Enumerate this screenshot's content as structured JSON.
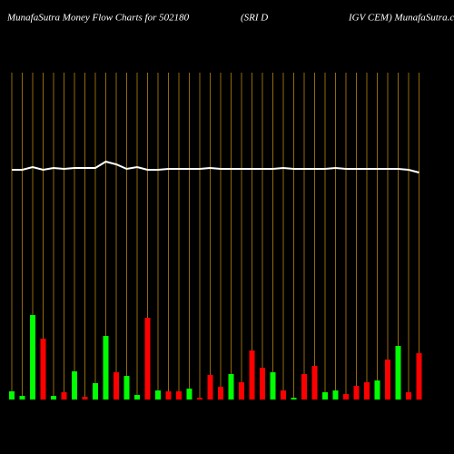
{
  "chart_data": {
    "type": "bar",
    "title": "MunafaSutra  Money Flow  Charts for 502180",
    "title_middle": "(SRI D",
    "title_right": "IGV CEM) MunafaSutra.com",
    "categories": [
      null,
      null,
      null,
      null,
      null,
      null,
      null,
      null,
      null,
      null,
      null,
      null,
      null,
      null,
      null,
      null,
      null,
      null,
      null,
      null,
      null,
      null,
      null,
      null,
      null,
      null,
      null,
      null,
      null,
      null,
      null,
      null,
      null,
      null,
      null,
      null,
      null,
      null,
      null,
      null
    ],
    "values": [
      9,
      4,
      93,
      67,
      4,
      8,
      31,
      3,
      18,
      70,
      30,
      26,
      5,
      90,
      10,
      9,
      9,
      12,
      2,
      27,
      14,
      28,
      19,
      54,
      35,
      30,
      10,
      2,
      28,
      37,
      8,
      10,
      6,
      15,
      19,
      21,
      44,
      59,
      8,
      51
    ],
    "colors": [
      "#00ff00",
      "#00ff00",
      "#00ff00",
      "#ff0000",
      "#00ff00",
      "#ff0000",
      "#00ff00",
      "#ff0000",
      "#00ff00",
      "#00ff00",
      "#ff0000",
      "#00ff00",
      "#00ff00",
      "#ff0000",
      "#00ff00",
      "#ff0000",
      "#ff0000",
      "#00ff00",
      "#ff0000",
      "#ff0000",
      "#ff0000",
      "#00ff00",
      "#ff0000",
      "#ff0000",
      "#ff0000",
      "#00ff00",
      "#ff0000",
      "#00ff00",
      "#ff0000",
      "#ff0000",
      "#00ff00",
      "#00ff00",
      "#ff0000",
      "#ff0000",
      "#ff0000",
      "#00ff00",
      "#ff0000",
      "#00ff00",
      "#ff0000",
      "#ff0000"
    ],
    "line_values": [
      253,
      253,
      256,
      253,
      255,
      254,
      255,
      255,
      255,
      262,
      259,
      254,
      256,
      253,
      253,
      254,
      254,
      254,
      254,
      255,
      254,
      254,
      254,
      254,
      254,
      254,
      255,
      254,
      254,
      254,
      254,
      255,
      254,
      254,
      254,
      254,
      254,
      254,
      253,
      250
    ],
    "line_color": "#ffffff",
    "gridline_color": "#b8860b",
    "ylim": [
      0,
      360
    ]
  }
}
